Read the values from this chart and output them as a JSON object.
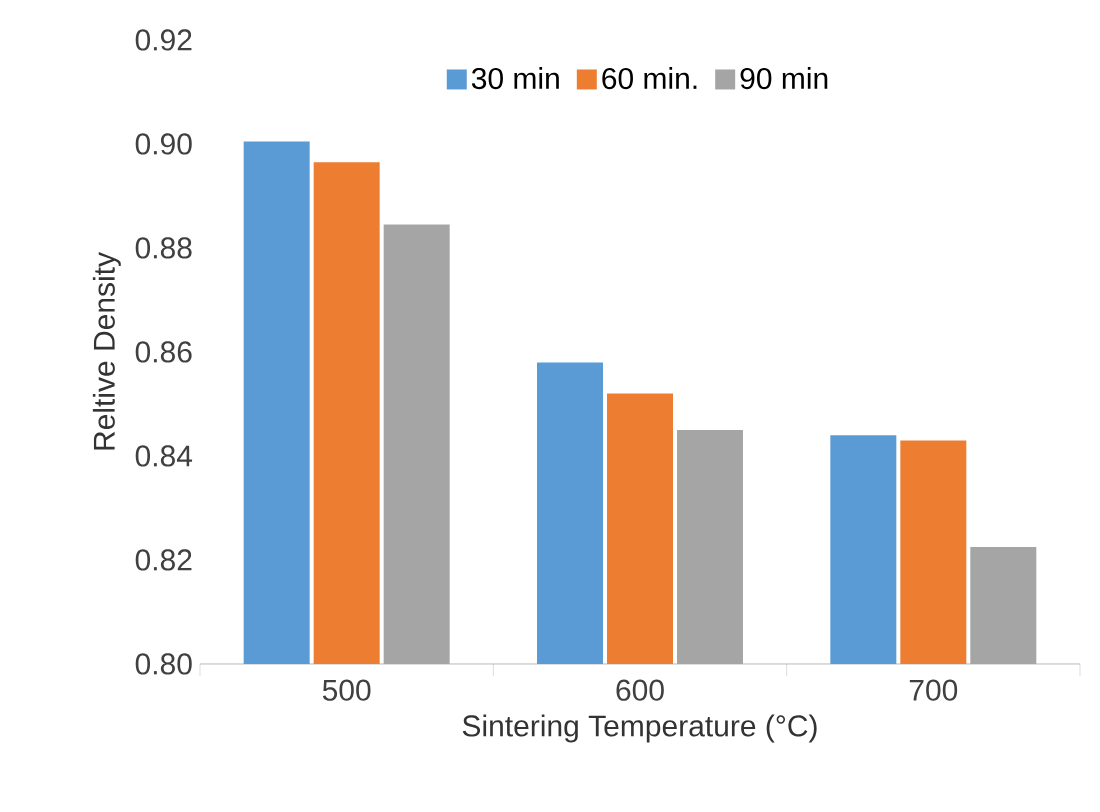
{
  "chart_data": {
    "type": "bar",
    "xlabel": "Sintering Temperature (°C)",
    "ylabel": "Reltive Density",
    "categories": [
      "500",
      "600",
      "700"
    ],
    "series": [
      {
        "name": "30 min",
        "color": "#5b9bd5",
        "values": [
          0.9005,
          0.858,
          0.844
        ]
      },
      {
        "name": "60 min.",
        "color": "#ed7d31",
        "values": [
          0.8965,
          0.852,
          0.843
        ]
      },
      {
        "name": "90 min",
        "color": "#a5a5a5",
        "values": [
          0.8845,
          0.845,
          0.8225
        ]
      }
    ],
    "ylim": [
      0.8,
      0.92
    ],
    "yticks": [
      {
        "value": 0.8,
        "label": "0.80"
      },
      0.82,
      0.84,
      0.86,
      0.88,
      {
        "value": 0.9,
        "label": "0.90"
      },
      0.92
    ],
    "grid": false,
    "legend": "top"
  }
}
